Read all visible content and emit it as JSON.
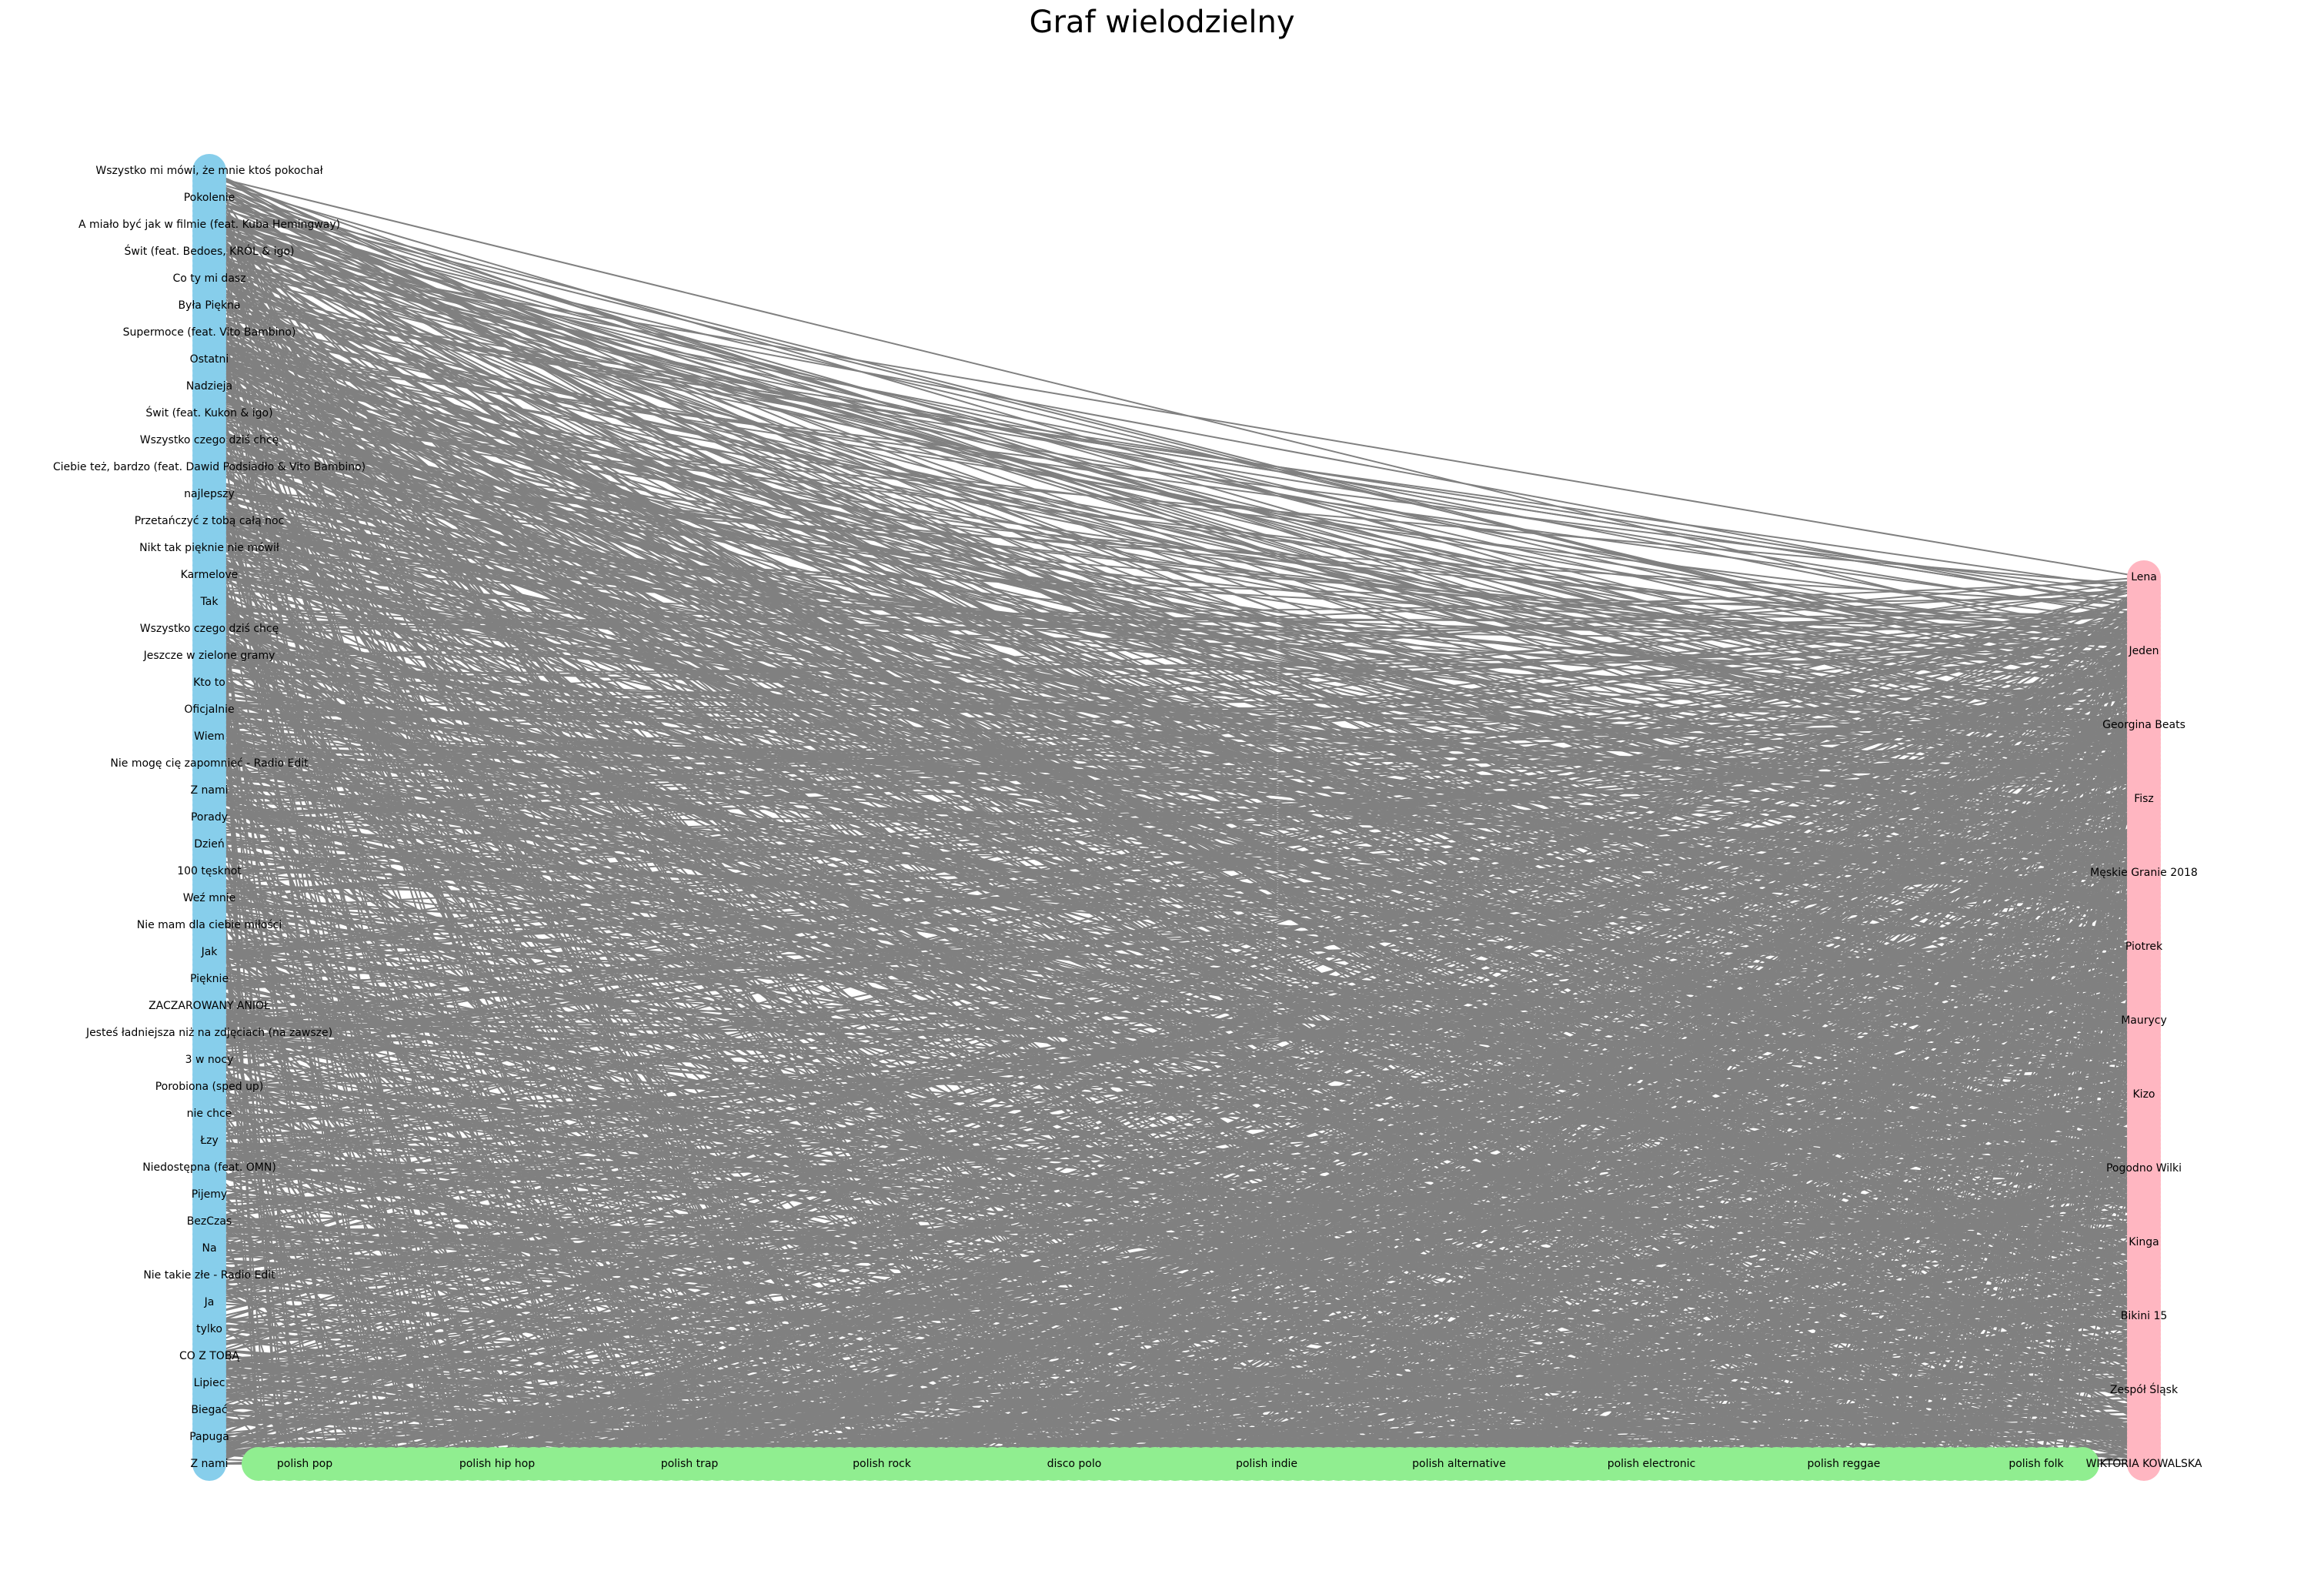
{
  "title": "Graf wielodzielny",
  "colors": {
    "background": "#ffffff",
    "edge": "#808080",
    "songs": "#87ceeb",
    "genres": "#90ee90",
    "artists": "#ffb6c1",
    "label": "#000000"
  },
  "songs": [
    "Wszystko mi mówi, że mnie ktoś pokochał",
    "Pokolenie",
    "A miało być jak w filmie (feat. Kuba Hemingway)",
    "Świt (feat. Bedoes, KRÓL & igo)",
    "Co ty mi dasz",
    "Była Piękna",
    "Supermoce (feat. Vito Bambino)",
    "Ostatni",
    "Nadzieja",
    "Świt (feat. Kukon & igo)",
    "Wszystko czego dziś chcę",
    "Ciebie też, bardzo (feat. Dawid Podsiadło & Vito Bambino)",
    "najlepszy",
    "Przetańczyć z tobą całą noc",
    "Nikt tak pięknie nie mówił",
    "Karmelove",
    "Tak",
    "Wszystko czego dziś chcę",
    "Jeszcze w zielone gramy",
    "Kto to",
    "Oficjalnie",
    "Wiem",
    "Nie mogę cię zapomnieć - Radio Edit",
    "Z nami",
    "Porady",
    "Dzień",
    "100 tęsknot",
    "Weź mnie",
    "Nie mam dla ciebie miłości",
    "Jak",
    "Pięknie",
    "ZACZAROWANY ANIOŁ",
    "Jesteś ładniejsza niż na zdjęciach (na zawsze)",
    "3 w nocy",
    "Porobiona (sped up)",
    "nie chce",
    "Łzy",
    "Niedostępna (feat. OMN)",
    "Pijemy",
    "BezCzas",
    "Na",
    "Nie takie złe - Radio Edit",
    "Ja",
    "tylko",
    "CO Z TOBĄ",
    "Lipiec",
    "Biegać",
    "Papuga",
    "Z nami"
  ],
  "artists": [
    "Lena",
    "Jeden",
    "Georgina Beats",
    "Fisz",
    "Męskie Granie 2018",
    "Piotrek",
    "Maurycy",
    "Kizo",
    "Pogodno Wilki",
    "Kinga",
    "Bikini 15",
    "Zespół Śląsk",
    "WIKTORIA KOWALSKA"
  ],
  "genres": [
    "polish pop",
    "polish hip hop",
    "polish trap",
    "polish rock",
    "disco polo",
    "polish indie",
    "polish alternative",
    "polish electronic",
    "polish reggae",
    "polish folk"
  ]
}
